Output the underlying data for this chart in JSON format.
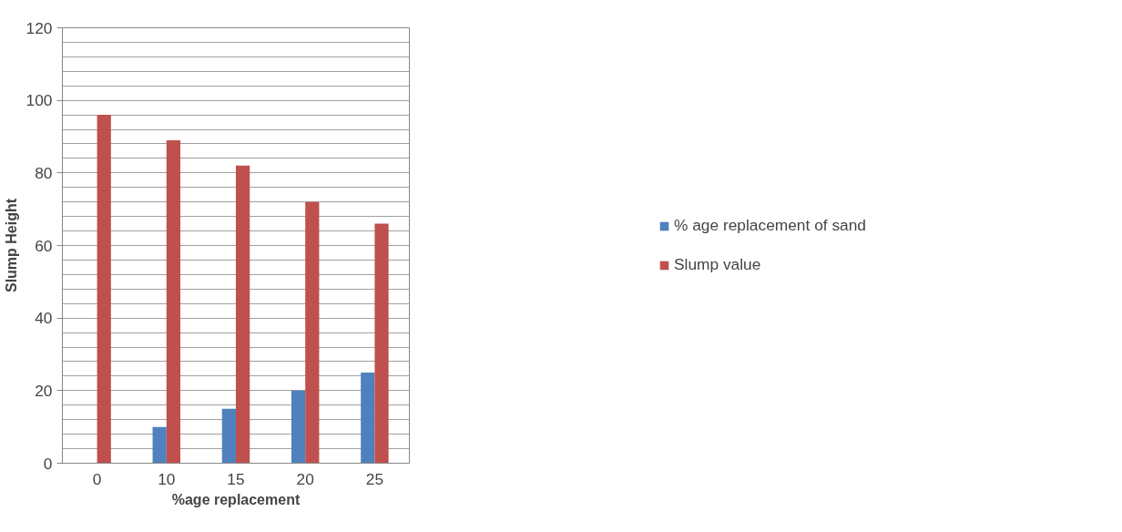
{
  "chart_data": {
    "type": "bar",
    "xlabel": "%age replacement",
    "ylabel": "Slump Height",
    "categories": [
      "0",
      "10",
      "15",
      "20",
      "25"
    ],
    "series": [
      {
        "name": "% age replacement of sand",
        "color": "#4f81bd",
        "values": [
          0,
          10,
          15,
          20,
          25
        ]
      },
      {
        "name": "Slump value",
        "color": "#c0504d",
        "values": [
          96,
          89,
          82,
          72,
          66
        ]
      }
    ],
    "ylim": [
      0,
      120
    ],
    "yticks": [
      0,
      {
        "value": 4,
        "label": null
      },
      {
        "value": 8,
        "label": null
      },
      {
        "value": 12,
        "label": null
      },
      {
        "value": 16,
        "label": null
      },
      20,
      {
        "value": 24,
        "label": null
      },
      {
        "value": 28,
        "label": null
      },
      {
        "value": 32,
        "label": null
      },
      {
        "value": 36,
        "label": null
      },
      40,
      {
        "value": 44,
        "label": null
      },
      {
        "value": 48,
        "label": null
      },
      {
        "value": 52,
        "label": null
      },
      {
        "value": 56,
        "label": null
      },
      60,
      {
        "value": 64,
        "label": null
      },
      {
        "value": 68,
        "label": null
      },
      {
        "value": 72,
        "label": null
      },
      {
        "value": 76,
        "label": null
      },
      80,
      {
        "value": 84,
        "label": null
      },
      {
        "value": 88,
        "label": null
      },
      {
        "value": 92,
        "label": null
      },
      {
        "value": 96,
        "label": null
      },
      100,
      {
        "value": 104,
        "label": null
      },
      {
        "value": 108,
        "label": null
      },
      {
        "value": 112,
        "label": null
      },
      {
        "value": 116,
        "label": null
      },
      120
    ],
    "grid": "y",
    "legend": "right"
  }
}
